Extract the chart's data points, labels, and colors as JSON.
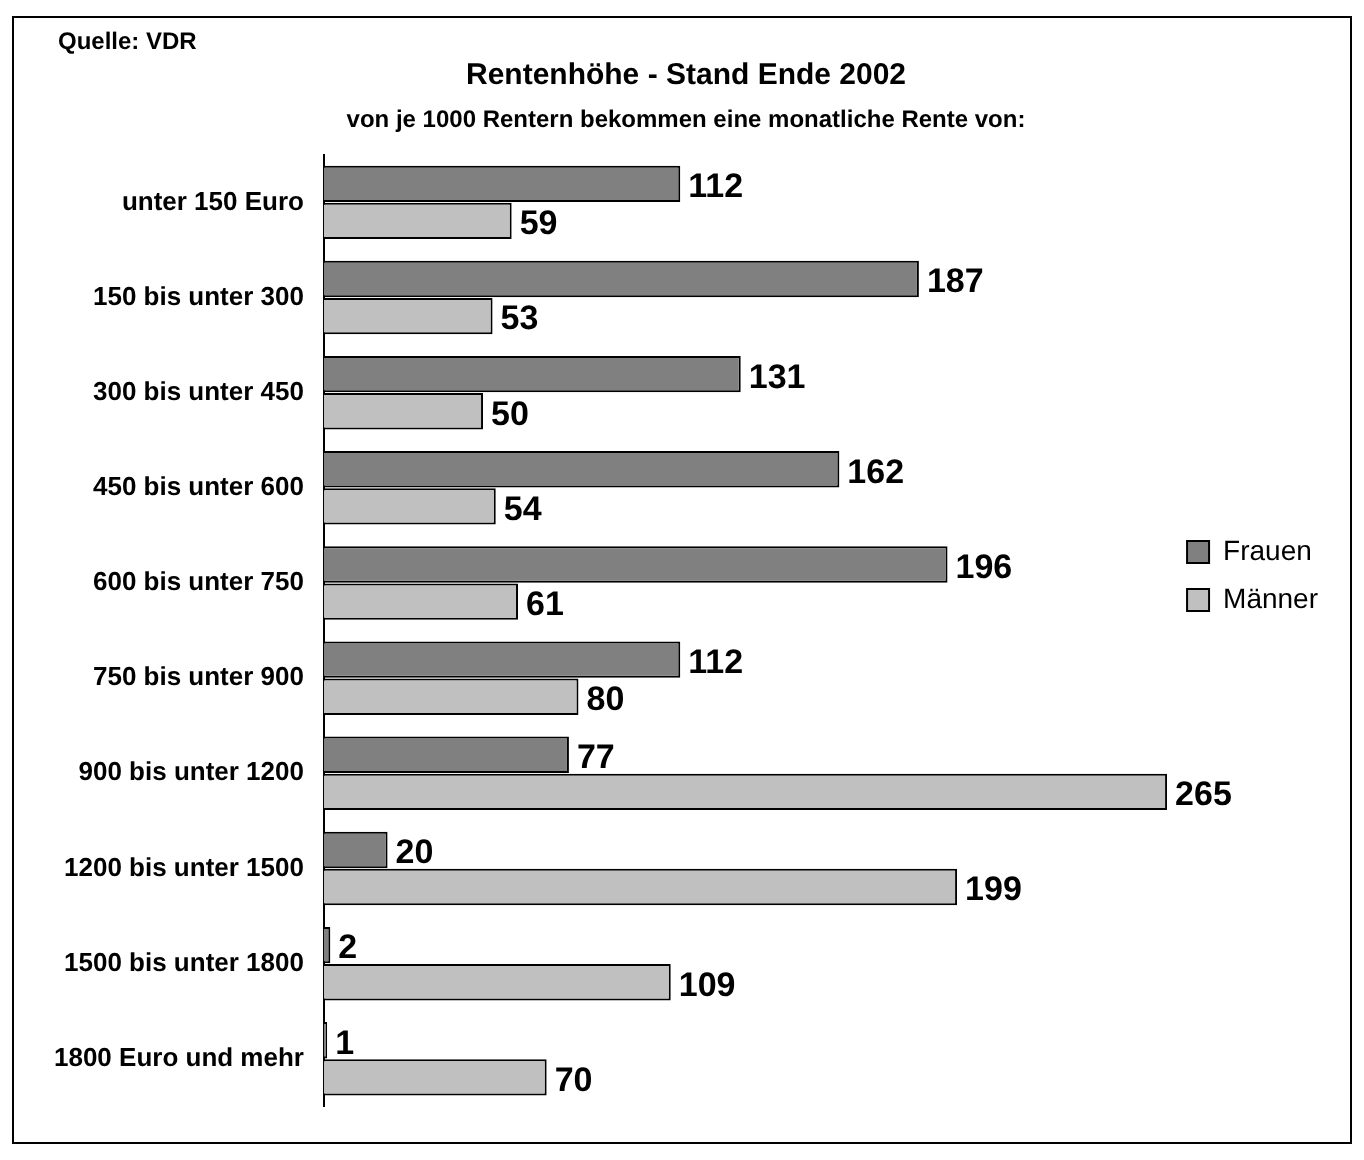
{
  "chart_data": {
    "type": "bar",
    "orientation": "horizontal",
    "title": "Rentenhöhe - Stand Ende 2002",
    "subtitle": "von je 1000 Rentern bekommen eine monatliche Rente von:",
    "annotations": [
      "Quelle: VDR"
    ],
    "categories": [
      "unter 150 Euro",
      "150 bis unter 300",
      "300 bis unter 450",
      "450 bis unter 600",
      "600 bis unter 750",
      "750 bis unter 900",
      "900 bis unter 1200",
      "1200 bis unter 1500",
      "1500 bis unter 1800",
      "1800 Euro und mehr"
    ],
    "series": [
      {
        "name": "Frauen",
        "color": "#808080",
        "values": [
          112,
          187,
          131,
          162,
          196,
          112,
          77,
          20,
          2,
          1
        ]
      },
      {
        "name": "Männer",
        "color": "#c0c0c0",
        "values": [
          59,
          53,
          50,
          54,
          61,
          80,
          265,
          199,
          109,
          70
        ]
      }
    ],
    "tick_labels": "y",
    "grid": false,
    "legend": "right",
    "data_labels": true
  }
}
